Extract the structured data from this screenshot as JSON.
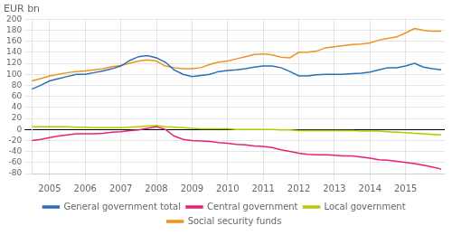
{
  "chart_data": {
    "type": "line",
    "ylabel": "EUR bn",
    "x": [
      2004.5,
      2004.75,
      2005.0,
      2005.25,
      2005.5,
      2005.75,
      2006.0,
      2006.25,
      2006.5,
      2006.75,
      2007.0,
      2007.25,
      2007.5,
      2007.75,
      2008.0,
      2008.25,
      2008.5,
      2008.75,
      2009.0,
      2009.25,
      2009.5,
      2009.75,
      2010.0,
      2010.25,
      2010.5,
      2010.75,
      2011.0,
      2011.25,
      2011.5,
      2011.75,
      2012.0,
      2012.25,
      2012.5,
      2012.75,
      2013.0,
      2013.25,
      2013.5,
      2013.75,
      2014.0,
      2014.25,
      2014.5,
      2014.75,
      2015.0,
      2015.25,
      2015.5,
      2015.75,
      2016.0
    ],
    "series": [
      {
        "name": "General government total",
        "color": "#2970B4",
        "values": [
          73,
          80,
          88,
          92,
          96,
          100,
          100,
          103,
          106,
          110,
          115,
          125,
          132,
          134,
          130,
          122,
          108,
          100,
          96,
          98,
          100,
          105,
          107,
          108,
          110,
          113,
          115,
          115,
          112,
          105,
          97,
          97,
          99,
          100,
          100,
          100,
          101,
          102,
          104,
          108,
          112,
          112,
          115,
          120,
          113,
          110,
          108
        ]
      },
      {
        "name": "Central government",
        "color": "#E8207A",
        "values": [
          -20,
          -18,
          -15,
          -12,
          -10,
          -8,
          -8,
          -8,
          -7,
          -5,
          -4,
          -2,
          -1,
          2,
          5,
          0,
          -12,
          -18,
          -20,
          -21,
          -22,
          -24,
          -25,
          -27,
          -28,
          -30,
          -31,
          -33,
          -37,
          -40,
          -43,
          -45,
          -46,
          -46,
          -47,
          -48,
          -48,
          -50,
          -52,
          -55,
          -56,
          -58,
          -60,
          -62,
          -65,
          -68,
          -72
        ]
      },
      {
        "name": "Local government",
        "color": "#B8C800",
        "values": [
          5,
          5,
          5,
          5,
          5,
          4,
          4,
          3,
          3,
          3,
          3,
          4,
          5,
          6,
          7,
          5,
          4,
          3,
          2,
          1,
          1,
          1,
          1,
          0,
          0,
          0,
          0,
          0,
          -1,
          -1,
          -2,
          -2,
          -2,
          -2,
          -2,
          -2,
          -2,
          -3,
          -3,
          -3,
          -4,
          -5,
          -6,
          -7,
          -8,
          -9,
          -10
        ]
      },
      {
        "name": "Social security funds",
        "color": "#F0921E",
        "values": [
          88,
          92,
          97,
          100,
          103,
          105,
          106,
          108,
          110,
          114,
          116,
          120,
          124,
          126,
          124,
          115,
          112,
          110,
          110,
          112,
          118,
          122,
          124,
          128,
          132,
          136,
          137,
          135,
          131,
          130,
          140,
          140,
          142,
          148,
          150,
          152,
          154,
          155,
          157,
          162,
          165,
          168,
          175,
          183,
          180,
          178,
          178
        ]
      }
    ],
    "xlim": [
      2004.5,
      2016.1
    ],
    "xticks": [
      2005,
      2006,
      2007,
      2008,
      2009,
      2010,
      2011,
      2012,
      2013,
      2014,
      2015
    ],
    "ylim": [
      -80,
      200
    ],
    "yticks": [
      -80,
      -60,
      -40,
      -20,
      0,
      20,
      40,
      60,
      80,
      100,
      120,
      140,
      160,
      180,
      200
    ],
    "grid": true,
    "legend": "bottom"
  }
}
